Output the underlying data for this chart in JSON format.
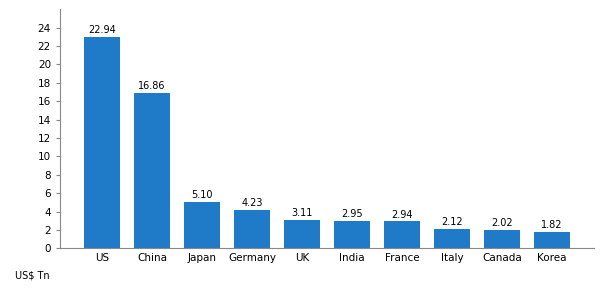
{
  "categories": [
    "US",
    "China",
    "Japan",
    "Germany",
    "UK",
    "India",
    "France",
    "Italy",
    "Canada",
    "Korea"
  ],
  "values": [
    22.94,
    16.86,
    5.1,
    4.23,
    3.11,
    2.95,
    2.94,
    2.12,
    2.02,
    1.82
  ],
  "bar_color": "#1F7BC8",
  "ylabel": "US$ Tn",
  "ylim": [
    0,
    26
  ],
  "yticks": [
    0,
    2,
    4,
    6,
    8,
    10,
    12,
    14,
    16,
    18,
    20,
    22,
    24
  ],
  "background_color": "#ffffff",
  "label_fontsize": 7.0,
  "tick_fontsize": 7.5,
  "ylabel_fontsize": 7.0,
  "bar_width": 0.72
}
